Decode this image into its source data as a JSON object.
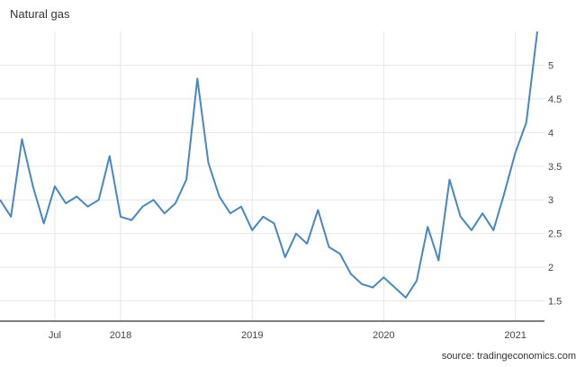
{
  "title": "Natural gas",
  "source": "source: tradingeconomics.com",
  "colors": {
    "line": "#4787c4",
    "grid": "#e6e6e6",
    "axis": "#333333",
    "text": "#444444"
  },
  "chart_data": {
    "type": "line",
    "title": "Natural gas",
    "xlabel": "",
    "ylabel": "",
    "x_tick_labels": [
      "Jul",
      "2018",
      "2019",
      "2020",
      "2021"
    ],
    "x_tick_positions": [
      "2017-07",
      "2018-01",
      "2019-01",
      "2020-01",
      "2021-01"
    ],
    "y_ticks": [
      1.5,
      2,
      2.5,
      3,
      3.5,
      4,
      4.5,
      5
    ],
    "ylim": [
      1.2,
      5.5
    ],
    "xlim": [
      "2017-02",
      "2021-03"
    ],
    "grid": true,
    "y_axis_side": "right",
    "series": [
      {
        "x": [
          "2017-02",
          "2017-03",
          "2017-04",
          "2017-05",
          "2017-06",
          "2017-07",
          "2017-08",
          "2017-09",
          "2017-10",
          "2017-11",
          "2017-12",
          "2018-01",
          "2018-02",
          "2018-03",
          "2018-04",
          "2018-05",
          "2018-06",
          "2018-07",
          "2018-08",
          "2018-09",
          "2018-10",
          "2018-11",
          "2018-12",
          "2019-01",
          "2019-02",
          "2019-03",
          "2019-04",
          "2019-05",
          "2019-06",
          "2019-07",
          "2019-08",
          "2019-09",
          "2019-10",
          "2019-11",
          "2019-12",
          "2020-01",
          "2020-02",
          "2020-03",
          "2020-04",
          "2020-05",
          "2020-06",
          "2020-07",
          "2020-08",
          "2020-09",
          "2020-10",
          "2020-11",
          "2020-12",
          "2021-01",
          "2021-02",
          "2021-03"
        ],
        "y": [
          3.0,
          2.75,
          3.9,
          3.2,
          2.65,
          3.2,
          2.95,
          3.05,
          2.9,
          3.0,
          3.65,
          2.75,
          2.7,
          2.9,
          3.0,
          2.8,
          2.95,
          3.3,
          4.8,
          3.55,
          3.05,
          2.8,
          2.9,
          2.55,
          2.75,
          2.65,
          2.15,
          2.5,
          2.35,
          2.85,
          2.3,
          2.2,
          1.9,
          1.75,
          1.7,
          1.85,
          1.7,
          1.55,
          1.8,
          2.6,
          2.1,
          3.3,
          2.75,
          2.55,
          2.8,
          2.55,
          3.1,
          3.7,
          4.15,
          5.5
        ]
      }
    ]
  }
}
